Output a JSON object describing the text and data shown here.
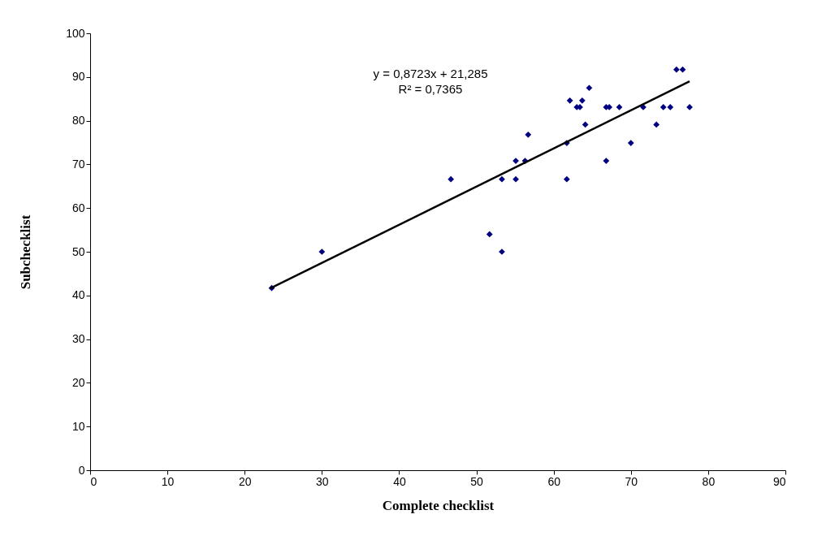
{
  "chart_data": {
    "type": "scatter",
    "xlabel": "Complete checklist",
    "ylabel": "Subchecklist",
    "xlim": [
      0,
      90
    ],
    "xticks": [
      0,
      10,
      20,
      30,
      40,
      50,
      60,
      70,
      80,
      90
    ],
    "ylim": [
      0,
      100
    ],
    "yticks": [
      0,
      10,
      20,
      30,
      40,
      50,
      60,
      70,
      80,
      90,
      100
    ],
    "grid": false,
    "annotations": [
      "y = 0,8723x + 21,285",
      "R² = 0,7365"
    ],
    "series": [
      {
        "marker": "diamond",
        "color": "#000080",
        "x": [
          23.5,
          30,
          46.7,
          51.7,
          53.3,
          53.3,
          55.1,
          55.1,
          56.3,
          56.7,
          61.7,
          61.7,
          62.1,
          63.0,
          63.4,
          63.7,
          64.1,
          64.6,
          66.8,
          66.8,
          67.2,
          68.5,
          70.0,
          71.6,
          73.3,
          74.2,
          75.1,
          75.9,
          76.7,
          77.6
        ],
        "values": [
          41.7,
          50,
          66.6,
          54.0,
          50.0,
          66.6,
          70.8,
          66.6,
          70.8,
          76.8,
          74.9,
          66.6,
          84.6,
          83.1,
          83.1,
          84.6,
          79.1,
          87.5,
          70.8,
          83.1,
          83.1,
          83.1,
          74.9,
          83.1,
          79.1,
          83.1,
          83.1,
          91.7,
          91.7,
          83.1
        ]
      },
      {
        "type": "line",
        "color": "#000000",
        "line_style": "solid",
        "x": [
          23.3,
          77.6
        ],
        "values": [
          41.6,
          89.0
        ]
      }
    ]
  }
}
